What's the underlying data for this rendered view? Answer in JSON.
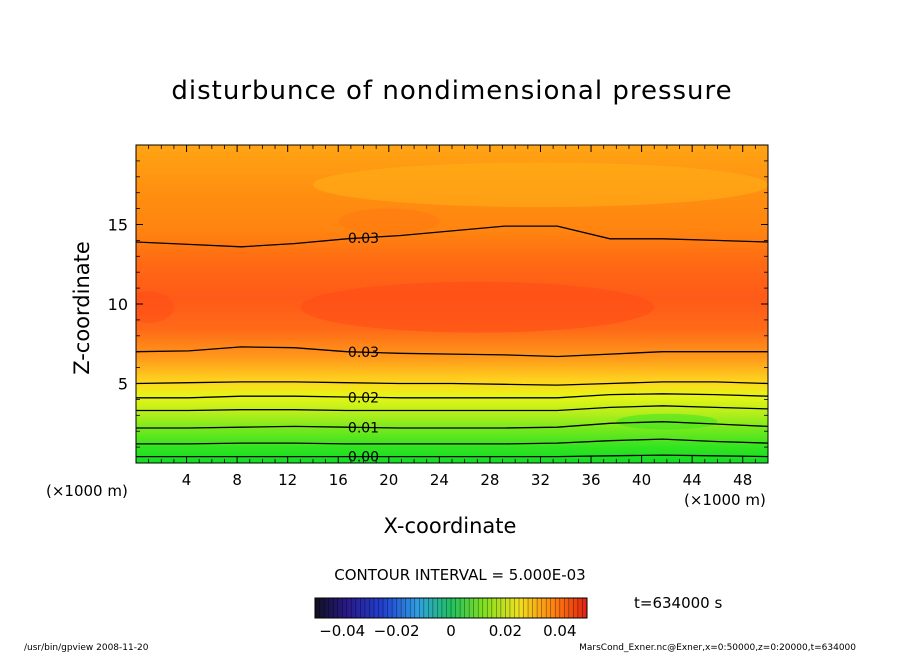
{
  "chart_data": {
    "type": "heatmap",
    "title": "disturbunce of nondimensional pressure",
    "xlabel": "X-coordinate",
    "ylabel": "Z-coordinate",
    "x_unit": "(×1000 m)",
    "z_unit": "(×1000 m)",
    "xlim": [
      0,
      50
    ],
    "ylim": [
      0,
      20
    ],
    "x_ticks": [
      4,
      8,
      12,
      16,
      20,
      24,
      28,
      32,
      36,
      40,
      44,
      48
    ],
    "y_ticks": [
      5,
      10,
      15
    ],
    "contour_interval_text": "CONTOUR INTERVAL = 5.000E-03",
    "contours": [
      {
        "label": "0.00",
        "value": 0.0,
        "z": [
          0.4,
          0.4,
          0.4,
          0.4,
          0.4,
          0.4,
          0.4,
          0.4,
          0.4,
          0.45,
          0.5,
          0.45,
          0.4
        ]
      },
      {
        "label": "",
        "value": 0.005,
        "z": [
          1.2,
          1.2,
          1.25,
          1.25,
          1.2,
          1.2,
          1.2,
          1.2,
          1.25,
          1.4,
          1.5,
          1.35,
          1.25
        ]
      },
      {
        "label": "0.01",
        "value": 0.01,
        "z": [
          2.2,
          2.2,
          2.25,
          2.3,
          2.25,
          2.2,
          2.2,
          2.2,
          2.25,
          2.5,
          2.6,
          2.45,
          2.3
        ]
      },
      {
        "label": "",
        "value": 0.015,
        "z": [
          3.3,
          3.3,
          3.35,
          3.35,
          3.3,
          3.3,
          3.3,
          3.3,
          3.3,
          3.5,
          3.6,
          3.5,
          3.4
        ]
      },
      {
        "label": "0.02",
        "value": 0.02,
        "z": [
          4.1,
          4.1,
          4.2,
          4.2,
          4.15,
          4.1,
          4.1,
          4.1,
          4.1,
          4.3,
          4.35,
          4.3,
          4.2
        ]
      },
      {
        "label": "",
        "value": 0.025,
        "z": [
          5.0,
          5.05,
          5.1,
          5.1,
          5.05,
          5.0,
          5.0,
          4.95,
          4.9,
          5.0,
          5.1,
          5.1,
          5.0
        ]
      },
      {
        "label": "0.03",
        "value": 0.03,
        "z": [
          7.0,
          7.05,
          7.3,
          7.25,
          7.0,
          6.9,
          6.85,
          6.8,
          6.7,
          6.85,
          7.0,
          7.0,
          7.0
        ]
      },
      {
        "label": "0.03",
        "value": 0.03,
        "z": [
          13.9,
          13.75,
          13.6,
          13.8,
          14.1,
          14.3,
          14.6,
          14.9,
          14.9,
          14.1,
          14.1,
          14.0,
          13.9
        ]
      }
    ],
    "colorbar": {
      "tick_labels": [
        "−0.04",
        "−0.02",
        "0",
        "0.02",
        "0.04"
      ],
      "tick_values": [
        -0.04,
        -0.02,
        0,
        0.02,
        0.04
      ],
      "range": [
        -0.05,
        0.05
      ]
    },
    "colors": {
      "surface": "#11dd22",
      "low_band_1": "#44e61e",
      "low_band_2": "#9bef1a",
      "mid_band": "#e8f516",
      "band_yellow_orange": "#ffd21e",
      "band_light_orange": "#ffb21a",
      "band_orange": "#ff7d18",
      "core": "#ff5a18",
      "upper": "#ff8c10",
      "top": "#ffa010"
    }
  },
  "annotations": {
    "time": "t=634000 s",
    "footer_left": "/usr/bin/gpview   2008-11-20",
    "footer_right": "MarsCond_Exner.nc@Exner,x=0:50000,z=0:20000,t=634000"
  }
}
